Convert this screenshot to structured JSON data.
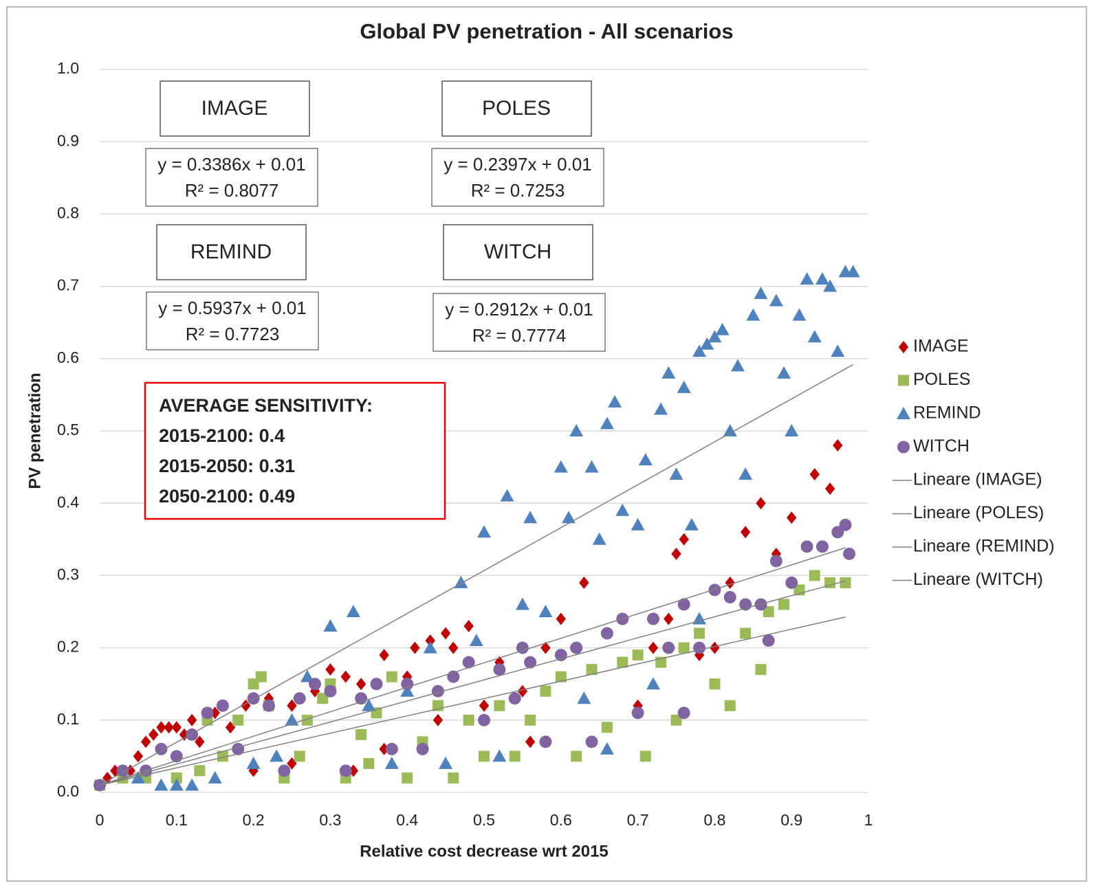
{
  "chart_data": {
    "type": "scatter",
    "title": "Global PV penetration - All scenarios",
    "x_label": "Relative cost decrease wrt 2015",
    "y_label": "PV penetration",
    "xlim": [
      0,
      1
    ],
    "ylim": [
      0,
      1
    ],
    "xticks": [
      0,
      0.1,
      0.2,
      0.3,
      0.4,
      0.5,
      0.6,
      0.7,
      0.8,
      0.9,
      1
    ],
    "yticks": [
      {
        "value": 0,
        "label": "0.0"
      },
      0.1,
      0.2,
      0.3,
      0.4,
      0.5,
      0.6,
      0.7,
      0.8,
      0.9,
      {
        "value": 1,
        "label": "1.0"
      }
    ],
    "grid": true,
    "series": [
      {
        "name": "IMAGE",
        "color": "#c00000",
        "marker": "diamond",
        "x": [
          0.01,
          0.02,
          0.03,
          0.04,
          0.05,
          0.06,
          0.07,
          0.08,
          0.09,
          0.1,
          0.11,
          0.12,
          0.13,
          0.15,
          0.17,
          0.19,
          0.22,
          0.25,
          0.28,
          0.3,
          0.32,
          0.34,
          0.37,
          0.4,
          0.41,
          0.43,
          0.45,
          0.46,
          0.48,
          0.5,
          0.52,
          0.55,
          0.56,
          0.58,
          0.6,
          0.62,
          0.63,
          0.64,
          0.68,
          0.7,
          0.72,
          0.74,
          0.75,
          0.76,
          0.78,
          0.8,
          0.82,
          0.84,
          0.86,
          0.88,
          0.9,
          0.92,
          0.93,
          0.95,
          0.96,
          0.33,
          0.37,
          0.25,
          0.2,
          0.44
        ],
        "values": [
          0.02,
          0.03,
          0.03,
          0.03,
          0.05,
          0.07,
          0.08,
          0.09,
          0.09,
          0.09,
          0.08,
          0.1,
          0.07,
          0.11,
          0.09,
          0.12,
          0.13,
          0.12,
          0.14,
          0.17,
          0.16,
          0.15,
          0.19,
          0.16,
          0.2,
          0.21,
          0.22,
          0.2,
          0.23,
          0.12,
          0.18,
          0.14,
          0.07,
          0.2,
          0.24,
          0.2,
          0.29,
          0.07,
          0.24,
          0.12,
          0.2,
          0.24,
          0.33,
          0.35,
          0.19,
          0.2,
          0.29,
          0.36,
          0.4,
          0.33,
          0.38,
          0.34,
          0.44,
          0.42,
          0.48,
          0.03,
          0.06,
          0.04,
          0.03,
          0.1
        ]
      },
      {
        "name": "POLES",
        "color": "#9bbb59",
        "marker": "square",
        "x": [
          0,
          0.03,
          0.06,
          0.1,
          0.13,
          0.16,
          0.18,
          0.2,
          0.21,
          0.22,
          0.24,
          0.27,
          0.29,
          0.3,
          0.32,
          0.34,
          0.36,
          0.38,
          0.4,
          0.42,
          0.44,
          0.46,
          0.48,
          0.5,
          0.52,
          0.54,
          0.56,
          0.58,
          0.6,
          0.62,
          0.64,
          0.66,
          0.68,
          0.7,
          0.71,
          0.73,
          0.75,
          0.76,
          0.78,
          0.8,
          0.82,
          0.84,
          0.86,
          0.87,
          0.89,
          0.91,
          0.93,
          0.95,
          0.97,
          0.14,
          0.26,
          0.35
        ],
        "values": [
          0.01,
          0.02,
          0.02,
          0.02,
          0.03,
          0.05,
          0.1,
          0.15,
          0.16,
          0.12,
          0.02,
          0.1,
          0.13,
          0.15,
          0.02,
          0.08,
          0.11,
          0.16,
          0.02,
          0.07,
          0.12,
          0.02,
          0.1,
          0.05,
          0.12,
          0.05,
          0.1,
          0.14,
          0.16,
          0.05,
          0.17,
          0.09,
          0.18,
          0.19,
          0.05,
          0.18,
          0.1,
          0.2,
          0.22,
          0.15,
          0.12,
          0.22,
          0.17,
          0.25,
          0.26,
          0.28,
          0.3,
          0.29,
          0.29,
          0.1,
          0.05,
          0.04
        ]
      },
      {
        "name": "REMIND",
        "color": "#4f81bd",
        "marker": "triangle",
        "x": [
          0.05,
          0.08,
          0.1,
          0.12,
          0.15,
          0.2,
          0.23,
          0.25,
          0.27,
          0.3,
          0.33,
          0.35,
          0.38,
          0.4,
          0.43,
          0.45,
          0.47,
          0.49,
          0.5,
          0.52,
          0.53,
          0.55,
          0.56,
          0.58,
          0.6,
          0.61,
          0.62,
          0.63,
          0.64,
          0.65,
          0.66,
          0.67,
          0.68,
          0.7,
          0.71,
          0.72,
          0.73,
          0.74,
          0.75,
          0.76,
          0.77,
          0.78,
          0.79,
          0.8,
          0.81,
          0.82,
          0.83,
          0.84,
          0.85,
          0.86,
          0.88,
          0.89,
          0.9,
          0.91,
          0.92,
          0.93,
          0.94,
          0.95,
          0.96,
          0.97,
          0.98,
          0.66,
          0.78
        ],
        "values": [
          0.02,
          0.01,
          0.01,
          0.01,
          0.02,
          0.04,
          0.05,
          0.1,
          0.16,
          0.23,
          0.25,
          0.12,
          0.04,
          0.14,
          0.2,
          0.04,
          0.29,
          0.21,
          0.36,
          0.05,
          0.41,
          0.26,
          0.38,
          0.25,
          0.45,
          0.38,
          0.5,
          0.13,
          0.45,
          0.35,
          0.51,
          0.54,
          0.39,
          0.37,
          0.46,
          0.15,
          0.53,
          0.58,
          0.44,
          0.56,
          0.37,
          0.61,
          0.62,
          0.63,
          0.64,
          0.5,
          0.59,
          0.44,
          0.66,
          0.69,
          0.68,
          0.58,
          0.5,
          0.66,
          0.71,
          0.63,
          0.71,
          0.7,
          0.61,
          0.72,
          0.72,
          0.06,
          0.24
        ]
      },
      {
        "name": "WITCH",
        "color": "#8064a2",
        "marker": "circle",
        "x": [
          0,
          0.03,
          0.06,
          0.08,
          0.1,
          0.12,
          0.14,
          0.16,
          0.18,
          0.2,
          0.22,
          0.24,
          0.26,
          0.28,
          0.3,
          0.32,
          0.34,
          0.36,
          0.38,
          0.4,
          0.42,
          0.44,
          0.46,
          0.48,
          0.5,
          0.52,
          0.54,
          0.56,
          0.58,
          0.6,
          0.62,
          0.64,
          0.66,
          0.68,
          0.7,
          0.72,
          0.74,
          0.76,
          0.78,
          0.8,
          0.82,
          0.84,
          0.86,
          0.88,
          0.9,
          0.92,
          0.94,
          0.96,
          0.97,
          0.975,
          0.87,
          0.76,
          0.55
        ],
        "values": [
          0.01,
          0.03,
          0.03,
          0.06,
          0.05,
          0.08,
          0.11,
          0.12,
          0.06,
          0.13,
          0.12,
          0.03,
          0.13,
          0.15,
          0.14,
          0.03,
          0.13,
          0.15,
          0.06,
          0.15,
          0.06,
          0.14,
          0.16,
          0.18,
          0.1,
          0.17,
          0.13,
          0.18,
          0.07,
          0.19,
          0.2,
          0.07,
          0.22,
          0.24,
          0.11,
          0.24,
          0.2,
          0.26,
          0.2,
          0.28,
          0.27,
          0.26,
          0.26,
          0.32,
          0.29,
          0.34,
          0.34,
          0.36,
          0.37,
          0.33,
          0.21,
          0.11,
          0.2
        ]
      }
    ],
    "trendlines": [
      {
        "name": "Lineare (IMAGE)",
        "color": "#808080",
        "x": [
          0,
          0.97
        ],
        "values": [
          0.01,
          0.3384
        ]
      },
      {
        "name": "Lineare (POLES)",
        "color": "#808080",
        "x": [
          0,
          0.97
        ],
        "values": [
          0.01,
          0.2425
        ]
      },
      {
        "name": "Lineare (REMIND)",
        "color": "#808080",
        "x": [
          0,
          0.98
        ],
        "values": [
          0.01,
          0.5918
        ]
      },
      {
        "name": "Lineare (WITCH)",
        "color": "#808080",
        "x": [
          0,
          0.97
        ],
        "values": [
          0.01,
          0.2925
        ]
      }
    ],
    "model_boxes": [
      {
        "label": "IMAGE",
        "equation": "y = 0.3386x + 0.01",
        "r2": "R² = 0.8077"
      },
      {
        "label": "POLES",
        "equation": "y = 0.2397x + 0.01",
        "r2": "R² = 0.7253"
      },
      {
        "label": "REMIND",
        "equation": "y = 0.5937x + 0.01",
        "r2": "R² = 0.7723"
      },
      {
        "label": "WITCH",
        "equation": "y = 0.2912x + 0.01",
        "r2": "R² = 0.7774"
      }
    ],
    "sensitivity_box": [
      "AVERAGE SENSITIVITY:",
      "2015-2100: 0.4",
      "2015-2050: 0.31",
      "2050-2100: 0.49"
    ]
  }
}
